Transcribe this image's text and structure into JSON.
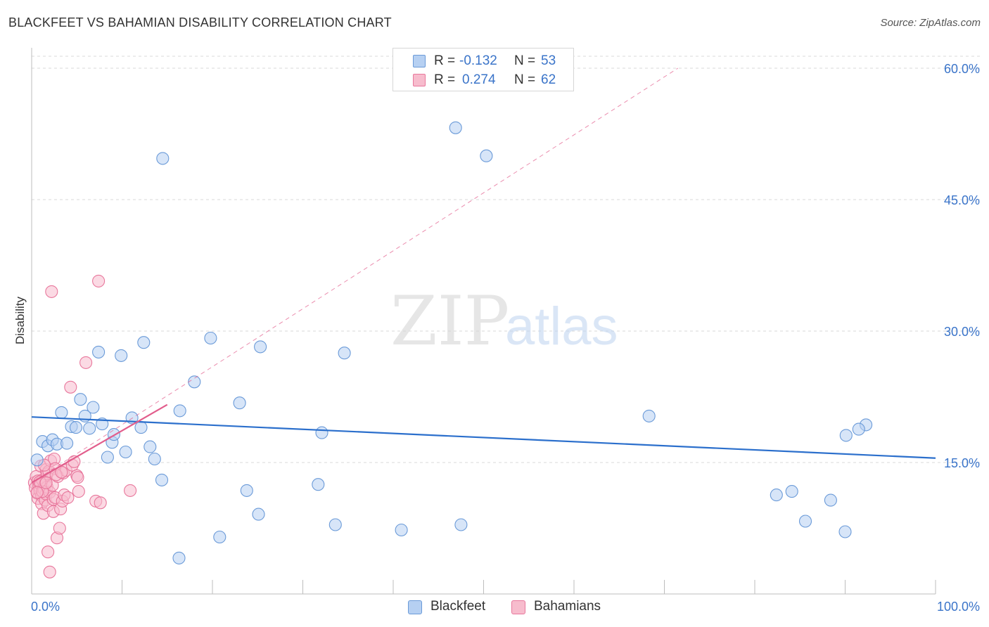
{
  "header": {
    "title": "BLACKFEET VS BAHAMIAN DISABILITY CORRELATION CHART",
    "source": "Source: ZipAtlas.com"
  },
  "watermark": {
    "zip": "ZIP",
    "atlas": "atlas"
  },
  "stats_legend": {
    "rows": [
      {
        "r_label": "R =",
        "r_value": "-0.132",
        "n_label": "N =",
        "n_value": "53"
      },
      {
        "r_label": "R =",
        "r_value": "0.274",
        "n_label": "N =",
        "n_value": "62"
      }
    ]
  },
  "colors": {
    "blackfeet_fill": "#b6d0f2",
    "blackfeet_stroke": "#6a9ad8",
    "blackfeet_line": "#2b6fcc",
    "bahamian_fill": "#f7bccd",
    "bahamian_stroke": "#e8779c",
    "bahamian_line": "#e25d8c",
    "axis_label": "#3a74c9",
    "grid": "#d9d9d9"
  },
  "chart_data": {
    "type": "scatter",
    "title": "BLACKFEET VS BAHAMIAN DISABILITY CORRELATION CHART",
    "xlabel": "",
    "ylabel": "Disability",
    "xlim": [
      0,
      100
    ],
    "ylim": [
      0,
      60
    ],
    "x_tick_labels": [
      "0.0%",
      "100.0%"
    ],
    "y_ticks": [
      15,
      30,
      45,
      60
    ],
    "y_tick_labels": [
      "15.0%",
      "30.0%",
      "45.0%",
      "60.0%"
    ],
    "grid": true,
    "legend_position": "bottom-center",
    "series": [
      {
        "name": "Blackfeet",
        "r": -0.132,
        "n": 53,
        "trend": {
          "x": [
            0,
            100
          ],
          "y": [
            20.2,
            15.5
          ]
        },
        "points": [
          [
            0.6,
            15.3
          ],
          [
            1.2,
            17.4
          ],
          [
            1.8,
            16.9
          ],
          [
            2.3,
            17.6
          ],
          [
            2.8,
            17.1
          ],
          [
            3.3,
            20.7
          ],
          [
            3.9,
            17.2
          ],
          [
            4.4,
            19.1
          ],
          [
            4.9,
            19.0
          ],
          [
            5.4,
            22.2
          ],
          [
            5.9,
            20.3
          ],
          [
            6.4,
            18.9
          ],
          [
            6.8,
            21.3
          ],
          [
            7.4,
            27.6
          ],
          [
            7.8,
            19.4
          ],
          [
            8.4,
            15.6
          ],
          [
            8.9,
            17.3
          ],
          [
            9.1,
            18.2
          ],
          [
            9.9,
            27.2
          ],
          [
            10.4,
            16.2
          ],
          [
            11.1,
            20.1
          ],
          [
            12.1,
            19.0
          ],
          [
            12.4,
            28.7
          ],
          [
            13.1,
            16.8
          ],
          [
            13.6,
            15.4
          ],
          [
            14.4,
            13.0
          ],
          [
            14.5,
            49.7
          ],
          [
            16.3,
            4.1
          ],
          [
            16.4,
            20.9
          ],
          [
            18.0,
            24.2
          ],
          [
            19.8,
            29.2
          ],
          [
            20.8,
            6.5
          ],
          [
            23.0,
            21.8
          ],
          [
            23.8,
            11.8
          ],
          [
            25.1,
            9.1
          ],
          [
            25.3,
            28.2
          ],
          [
            32.1,
            18.4
          ],
          [
            31.7,
            12.5
          ],
          [
            33.6,
            7.9
          ],
          [
            34.6,
            27.5
          ],
          [
            40.9,
            7.3
          ],
          [
            46.9,
            53.2
          ],
          [
            47.5,
            7.9
          ],
          [
            50.3,
            50.0
          ],
          [
            68.3,
            20.3
          ],
          [
            82.4,
            11.3
          ],
          [
            84.1,
            11.7
          ],
          [
            85.6,
            8.3
          ],
          [
            88.4,
            10.7
          ],
          [
            90.1,
            18.1
          ],
          [
            90.0,
            7.1
          ],
          [
            92.3,
            19.3
          ],
          [
            91.5,
            18.8
          ]
        ]
      },
      {
        "name": "Bahamians",
        "r": 0.274,
        "n": 62,
        "trend": {
          "x": [
            0,
            15
          ],
          "y": [
            12.7,
            21.6
          ]
        },
        "trend_extended": {
          "x": [
            0,
            71.5
          ],
          "y": [
            12.7,
            60.0
          ]
        },
        "points": [
          [
            0.3,
            12.7
          ],
          [
            0.4,
            12.1
          ],
          [
            0.5,
            13.4
          ],
          [
            0.6,
            11.5
          ],
          [
            0.7,
            12.9
          ],
          [
            0.7,
            10.9
          ],
          [
            0.8,
            12.3
          ],
          [
            0.9,
            11.8
          ],
          [
            1.0,
            12.5
          ],
          [
            1.0,
            14.6
          ],
          [
            1.1,
            11.2
          ],
          [
            1.1,
            10.3
          ],
          [
            1.2,
            13.0
          ],
          [
            1.3,
            12.0
          ],
          [
            1.3,
            9.2
          ],
          [
            1.4,
            11.9
          ],
          [
            1.5,
            12.6
          ],
          [
            1.5,
            10.7
          ],
          [
            1.6,
            14.2
          ],
          [
            1.6,
            11.4
          ],
          [
            1.7,
            13.7
          ],
          [
            1.7,
            12.2
          ],
          [
            1.8,
            4.8
          ],
          [
            1.8,
            10.1
          ],
          [
            1.9,
            14.0
          ],
          [
            2.0,
            2.5
          ],
          [
            2.0,
            11.6
          ],
          [
            2.1,
            15.2
          ],
          [
            2.2,
            34.5
          ],
          [
            2.3,
            12.4
          ],
          [
            2.4,
            9.4
          ],
          [
            2.4,
            10.8
          ],
          [
            2.5,
            15.4
          ],
          [
            2.6,
            14.3
          ],
          [
            2.6,
            11.0
          ],
          [
            2.8,
            6.4
          ],
          [
            2.9,
            13.4
          ],
          [
            3.1,
            7.5
          ],
          [
            3.2,
            9.7
          ],
          [
            3.4,
            10.6
          ],
          [
            3.5,
            13.8
          ],
          [
            3.6,
            11.3
          ],
          [
            3.8,
            14.1
          ],
          [
            4.0,
            11.0
          ],
          [
            4.3,
            23.6
          ],
          [
            4.5,
            14.7
          ],
          [
            4.7,
            15.1
          ],
          [
            5.0,
            13.5
          ],
          [
            5.1,
            13.3
          ],
          [
            5.2,
            11.7
          ],
          [
            6.0,
            26.4
          ],
          [
            7.1,
            10.6
          ],
          [
            7.4,
            35.7
          ],
          [
            7.6,
            10.4
          ],
          [
            10.9,
            11.8
          ],
          [
            1.2,
            11.7
          ],
          [
            0.9,
            12.8
          ],
          [
            1.6,
            12.7
          ],
          [
            2.7,
            13.6
          ],
          [
            0.6,
            11.6
          ],
          [
            1.4,
            14.7
          ],
          [
            3.3,
            13.9
          ]
        ]
      }
    ]
  }
}
